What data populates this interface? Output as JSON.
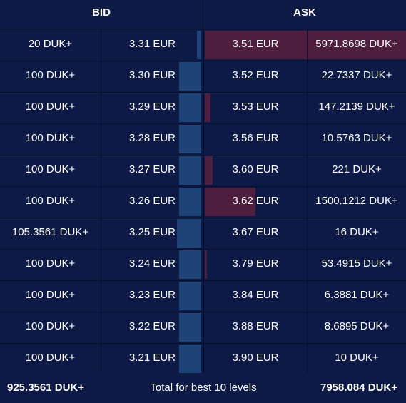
{
  "header": {
    "bid_label": "BID",
    "ask_label": "ASK"
  },
  "rows": [
    {
      "bid_qty": "20 DUK+",
      "bid_price": "3.31 EUR",
      "bid_fill": 0.02,
      "ask_price": "3.51 EUR",
      "ask_qty": "5971.8698 DUK+",
      "ask_fill": 1.0
    },
    {
      "bid_qty": "100 DUK+",
      "bid_price": "3.30 EUR",
      "bid_fill": 0.11,
      "ask_price": "3.52 EUR",
      "ask_qty": "22.7337 DUK+",
      "ask_fill": 0.0
    },
    {
      "bid_qty": "100 DUK+",
      "bid_price": "3.29 EUR",
      "bid_fill": 0.11,
      "ask_price": "3.53 EUR",
      "ask_qty": "147.2139 DUK+",
      "ask_fill": 0.03
    },
    {
      "bid_qty": "100 DUK+",
      "bid_price": "3.28 EUR",
      "bid_fill": 0.11,
      "ask_price": "3.56 EUR",
      "ask_qty": "10.5763 DUK+",
      "ask_fill": 0.0
    },
    {
      "bid_qty": "100 DUK+",
      "bid_price": "3.27 EUR",
      "bid_fill": 0.11,
      "ask_price": "3.60 EUR",
      "ask_qty": "221 DUK+",
      "ask_fill": 0.04
    },
    {
      "bid_qty": "100 DUK+",
      "bid_price": "3.26 EUR",
      "bid_fill": 0.11,
      "ask_price": "3.62 EUR",
      "ask_qty": "1500.1212 DUK+",
      "ask_fill": 0.25
    },
    {
      "bid_qty": "105.3561 DUK+",
      "bid_price": "3.25 EUR",
      "bid_fill": 0.12,
      "ask_price": "3.67 EUR",
      "ask_qty": "16 DUK+",
      "ask_fill": 0.0
    },
    {
      "bid_qty": "100 DUK+",
      "bid_price": "3.24 EUR",
      "bid_fill": 0.11,
      "ask_price": "3.79 EUR",
      "ask_qty": "53.4915 DUK+",
      "ask_fill": 0.01
    },
    {
      "bid_qty": "100 DUK+",
      "bid_price": "3.23 EUR",
      "bid_fill": 0.11,
      "ask_price": "3.84 EUR",
      "ask_qty": "6.3881 DUK+",
      "ask_fill": 0.0
    },
    {
      "bid_qty": "100 DUK+",
      "bid_price": "3.22 EUR",
      "bid_fill": 0.11,
      "ask_price": "3.88 EUR",
      "ask_qty": "8.6895 DUK+",
      "ask_fill": 0.0
    },
    {
      "bid_qty": "100 DUK+",
      "bid_price": "3.21 EUR",
      "bid_fill": 0.11,
      "ask_price": "3.90 EUR",
      "ask_qty": "10 DUK+",
      "ask_fill": 0.0
    }
  ],
  "footer": {
    "bid_total": "925.3561 DUK+",
    "label": "Total for best 10 levels",
    "ask_total": "7958.084 DUK+"
  },
  "colors": {
    "background": "#0c1a45",
    "bid_bar": "#1e4376",
    "ask_bar": "#4e1f3f",
    "divider": "#05102e",
    "text": "#ffffff"
  }
}
